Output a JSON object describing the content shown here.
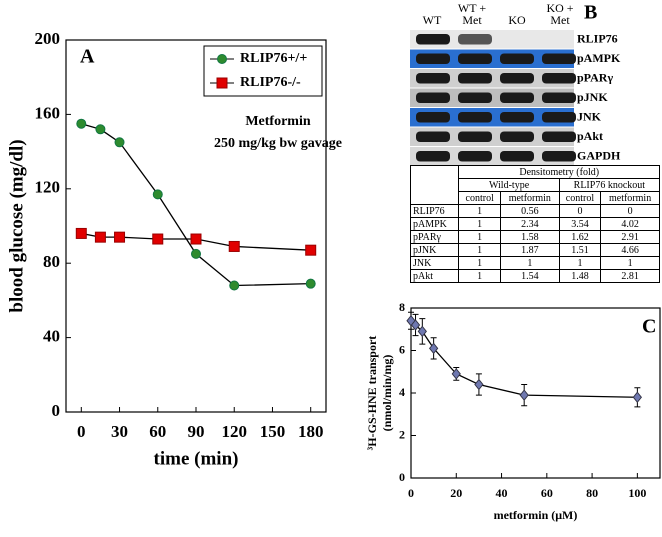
{
  "chart_data": [
    {
      "type": "line",
      "panel": "A",
      "ylabel": "blood glucose (mg/dl)",
      "xlabel": "time (min)",
      "annotations": [
        "Metformin",
        "250 mg/kg bw gavage"
      ],
      "x": [
        0,
        15,
        30,
        60,
        90,
        120,
        180
      ],
      "series": [
        {
          "name": "RLIP76+/+",
          "color": "#2e8b2e",
          "marker": "circle",
          "values": [
            155,
            152,
            145,
            117,
            85,
            68,
            69
          ]
        },
        {
          "name": "RLIP76-/-",
          "color": "#e00000",
          "marker": "square",
          "values": [
            96,
            94,
            94,
            93,
            93,
            89,
            87
          ]
        }
      ],
      "xlim": [
        -12,
        192
      ],
      "xticks": [
        0,
        30,
        60,
        90,
        120,
        150,
        180
      ],
      "ylim": [
        0,
        200
      ],
      "yticks": [
        0,
        40,
        80,
        120,
        160,
        200
      ],
      "legend": "upper right"
    },
    {
      "type": "line",
      "panel": "C",
      "ylabel": [
        "³H-GS-HNE transport",
        "(nmol/min/mg)"
      ],
      "xlabel": "metformin (μM)",
      "x": [
        0,
        2,
        5,
        10,
        20,
        30,
        50,
        100
      ],
      "series": [
        {
          "color": "#6f78b0",
          "marker": "diamond",
          "values": [
            7.4,
            7.2,
            6.9,
            6.1,
            4.9,
            4.4,
            3.9,
            3.8
          ],
          "errors": [
            0.4,
            0.5,
            0.6,
            0.5,
            0.3,
            0.5,
            0.5,
            0.45
          ]
        }
      ],
      "xlim": [
        0,
        110
      ],
      "xticks": [
        0,
        20,
        40,
        60,
        80,
        100
      ],
      "ylim": [
        0,
        8
      ],
      "yticks": [
        0,
        2,
        4,
        6,
        8
      ]
    }
  ],
  "blot": {
    "panel": "B",
    "lanes": [
      "WT",
      "WT + Met",
      "KO",
      "KO + Met"
    ],
    "rows": [
      "RLIP76",
      "pAMPK",
      "pPARγ",
      "pJNK",
      "JNK",
      "pAkt",
      "GAPDH"
    ]
  },
  "table": {
    "title": "Densitometry (fold)",
    "groups": [
      "Wild-type",
      "RLIP76 knockout"
    ],
    "columns": [
      "control",
      "metformin",
      "control",
      "metformin"
    ],
    "rows": [
      [
        "RLIP76",
        1,
        0.56,
        0,
        0
      ],
      [
        "pAMPK",
        1,
        2.34,
        3.54,
        4.02
      ],
      [
        "pPARγ",
        1,
        1.58,
        1.62,
        2.91
      ],
      [
        "pJNK",
        1,
        1.87,
        1.51,
        4.66
      ],
      [
        "JNK",
        1,
        1,
        1,
        1
      ],
      [
        "pAkt",
        1,
        1.54,
        1.48,
        2.81
      ]
    ]
  }
}
